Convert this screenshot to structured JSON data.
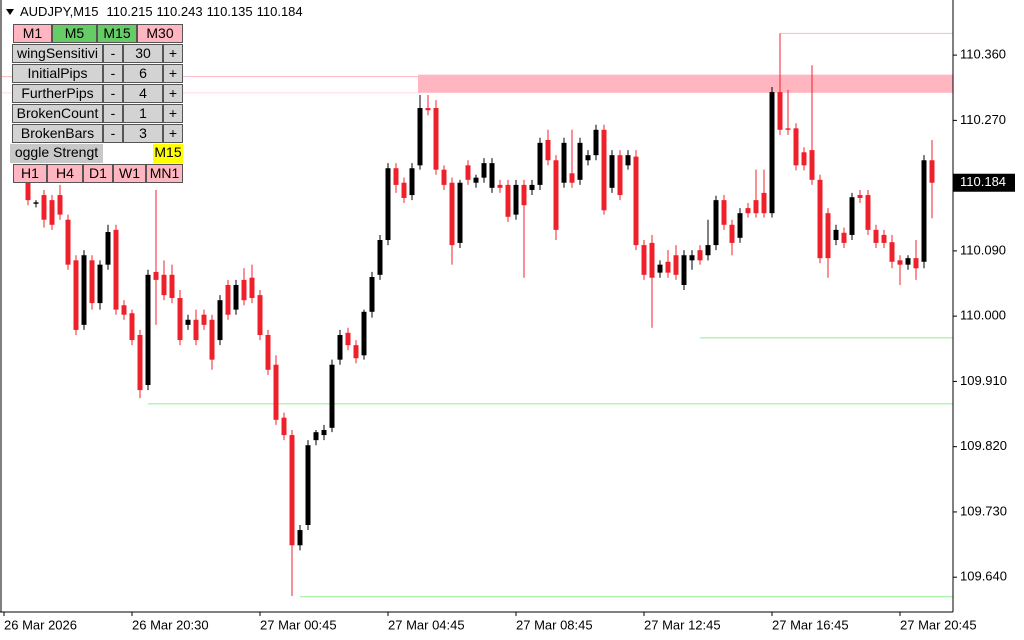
{
  "header": {
    "symbol": "AUDJPY,M15"
  },
  "panel": {
    "timeframes_top": [
      {
        "label": "M1",
        "color": "#ffb6c1"
      },
      {
        "label": "M5",
        "color": "#66cc66"
      },
      {
        "label": "M15",
        "color": "#66cc66"
      },
      {
        "label": "M30",
        "color": "#ffb6c1"
      }
    ],
    "params": [
      {
        "name": "wingSensitivi",
        "minus": "-",
        "value": 30,
        "plus": "+"
      },
      {
        "name": "InitialPips",
        "minus": "-",
        "value": 6,
        "plus": "+"
      },
      {
        "name": "FurtherPips",
        "minus": "-",
        "value": 4,
        "plus": "+"
      },
      {
        "name": "BrokenCount",
        "minus": "-",
        "value": 1,
        "plus": "+"
      },
      {
        "name": "BrokenBars",
        "minus": "-",
        "value": 3,
        "plus": "+"
      }
    ],
    "toggle": {
      "name": "oggle Strengt",
      "value": "M15",
      "color": "#ffff00"
    },
    "timeframes_bottom": [
      {
        "label": "H1",
        "color": "#ffb6c1"
      },
      {
        "label": "H4",
        "color": "#ffb6c1"
      },
      {
        "label": "D1",
        "color": "#ffb6c1"
      },
      {
        "label": "W1",
        "color": "#ffb6c1"
      },
      {
        "label": "MN1",
        "color": "#ffb6c1"
      }
    ]
  },
  "chart_data": {
    "type": "candlestick",
    "up_color": "#000000",
    "down_color": "#f0202b",
    "ylim": [
      109.592,
      110.436
    ],
    "yticks": [
      {
        "value": 110.36,
        "label": "110.360"
      },
      {
        "value": 110.27,
        "label": "110.270"
      },
      {
        "value": 110.09,
        "label": "110.090"
      },
      {
        "value": 110.0,
        "label": "110.000"
      },
      {
        "value": 109.91,
        "label": "109.910"
      },
      {
        "value": 109.82,
        "label": "109.820"
      },
      {
        "value": 109.73,
        "label": "109.730"
      },
      {
        "value": 109.64,
        "label": "109.640"
      }
    ],
    "time_labels": [
      "26 Mar 2026",
      "26 Mar 20:30",
      "27 Mar 00:45",
      "27 Mar 04:45",
      "27 Mar 08:45",
      "27 Mar 12:45",
      "27 Mar 16:45",
      "27 Mar 20:45"
    ],
    "price_label": {
      "value": 110.184,
      "label": "110.184"
    },
    "zone": {
      "low": 110.308,
      "high": 110.333,
      "start": 49,
      "color": "#ffb6c1"
    },
    "levels": [
      {
        "price": 110.39,
        "start": 94,
        "color": "#ffb6c1"
      },
      {
        "price": 109.97,
        "start": 84,
        "color": "#90ee90"
      },
      {
        "price": 109.879,
        "start": 15,
        "color": "#90ee90"
      },
      {
        "price": 109.613,
        "start": 34,
        "color": "#90ee90"
      }
    ],
    "open": [
      110.188,
      110.155,
      110.167,
      110.16,
      110.167,
      110.133,
      110.077,
      109.988,
      110.077,
      110.018,
      110.071,
      110.119,
      110.015,
      110.004,
      109.974,
      109.905,
      110.061,
      110.057,
      110.057,
      110.025,
      109.988,
      109.995,
      110.002,
      109.995,
      109.967,
      110.043,
      110.009,
      110.05,
      110.053,
      110.029,
      109.974,
      109.933,
      109.86,
      109.836,
      109.684,
      109.712,
      109.829,
      109.836,
      109.846,
      109.94,
      109.977,
      109.96,
      109.946,
      110.006,
      110.057,
      110.105,
      110.204,
      110.184,
      110.167,
      110.208,
      110.287,
      110.287,
      110.202,
      110.184,
      110.101,
      110.208,
      110.184,
      110.191,
      110.177,
      110.181,
      110.181,
      110.14,
      110.181,
      110.174,
      110.181,
      110.243,
      110.215,
      110.184,
      110.197,
      110.188,
      110.215,
      110.222,
      110.257,
      110.177,
      110.222,
      110.208,
      110.22,
      110.098,
      110.101,
      110.06,
      110.075,
      110.084,
      110.043,
      110.077,
      110.091,
      110.084,
      110.098,
      110.16,
      110.126,
      110.108,
      110.149,
      110.16,
      110.17,
      110.142,
      110.309,
      110.259,
      110.259,
      110.226,
      110.229,
      110.188,
      110.142,
      110.105,
      110.115,
      110.112,
      110.167,
      110.167,
      110.119,
      110.112,
      110.102,
      110.077,
      110.071,
      110.08,
      110.075,
      110.215
    ],
    "high": [
      110.202,
      110.16,
      110.174,
      110.167,
      110.181,
      110.14,
      110.084,
      110.091,
      110.084,
      110.077,
      110.126,
      110.126,
      110.022,
      110.009,
      109.981,
      110.064,
      110.174,
      110.077,
      110.071,
      110.036,
      110.002,
      110.009,
      110.009,
      110.002,
      110.029,
      110.05,
      110.05,
      110.066,
      110.071,
      110.036,
      109.981,
      109.946,
      109.867,
      109.843,
      109.712,
      109.829,
      109.843,
      109.85,
      109.94,
      109.981,
      109.984,
      109.967,
      110.009,
      110.061,
      110.112,
      110.211,
      110.211,
      110.191,
      110.211,
      110.305,
      110.305,
      110.298,
      110.208,
      110.191,
      110.188,
      110.215,
      110.195,
      110.218,
      110.218,
      110.188,
      110.188,
      110.188,
      110.188,
      110.188,
      110.246,
      110.257,
      110.222,
      110.246,
      110.257,
      110.246,
      110.229,
      110.264,
      110.264,
      110.229,
      110.229,
      110.229,
      110.229,
      110.105,
      110.112,
      110.077,
      110.091,
      110.098,
      110.091,
      110.091,
      110.098,
      110.133,
      110.166,
      110.167,
      110.133,
      110.149,
      110.156,
      110.202,
      110.202,
      110.316,
      110.39,
      110.312,
      110.266,
      110.233,
      110.346,
      110.195,
      110.149,
      110.126,
      110.122,
      110.17,
      110.174,
      110.174,
      110.126,
      110.119,
      110.112,
      110.084,
      110.084,
      110.105,
      110.222,
      110.243
    ],
    "low": [
      110.153,
      110.15,
      110.122,
      110.119,
      110.133,
      110.064,
      109.974,
      109.981,
      110.009,
      110.009,
      110.064,
      110.002,
      109.995,
      109.96,
      109.887,
      109.898,
      109.988,
      110.022,
      110.018,
      109.96,
      109.981,
      109.96,
      109.981,
      109.926,
      109.96,
      109.995,
      110.002,
      110.015,
      110.018,
      109.967,
      109.919,
      109.85,
      109.829,
      109.614,
      109.677,
      109.705,
      109.822,
      109.829,
      109.84,
      109.933,
      109.953,
      109.935,
      109.94,
      109.998,
      110.05,
      110.098,
      110.17,
      110.156,
      110.16,
      110.202,
      110.277,
      110.195,
      110.174,
      110.071,
      110.094,
      110.181,
      110.177,
      110.184,
      110.17,
      110.17,
      110.13,
      110.133,
      110.053,
      110.167,
      110.174,
      110.208,
      110.105,
      110.177,
      110.177,
      110.181,
      110.208,
      110.215,
      110.14,
      110.17,
      110.16,
      110.202,
      110.091,
      110.05,
      109.984,
      110.053,
      110.053,
      110.05,
      110.036,
      110.064,
      110.071,
      110.077,
      110.091,
      110.119,
      110.084,
      110.101,
      110.136,
      110.136,
      110.136,
      110.136,
      110.25,
      110.25,
      110.201,
      110.201,
      110.181,
      110.073,
      110.053,
      110.098,
      110.094,
      110.105,
      110.156,
      110.112,
      110.094,
      110.094,
      110.066,
      110.043,
      110.064,
      110.05,
      110.066,
      110.135
    ],
    "close": [
      110.16,
      110.157,
      110.133,
      110.126,
      110.14,
      110.071,
      109.981,
      110.084,
      110.018,
      110.071,
      110.116,
      110.009,
      110.002,
      109.967,
      109.898,
      110.057,
      110.05,
      110.029,
      110.025,
      109.967,
      109.995,
      109.967,
      109.988,
      109.94,
      110.022,
      110.002,
      110.043,
      110.022,
      110.025,
      109.974,
      109.926,
      109.857,
      109.836,
      109.684,
      109.705,
      109.822,
      109.84,
      109.843,
      109.933,
      109.974,
      109.96,
      109.942,
      110.006,
      110.054,
      110.105,
      110.204,
      110.181,
      110.163,
      110.204,
      110.287,
      110.284,
      110.202,
      110.181,
      110.098,
      110.184,
      110.188,
      110.191,
      110.211,
      110.211,
      110.177,
      110.137,
      110.181,
      110.153,
      110.181,
      110.239,
      110.215,
      110.119,
      110.239,
      110.184,
      110.239,
      110.222,
      110.257,
      110.146,
      110.222,
      110.167,
      110.222,
      110.098,
      110.057,
      110.053,
      110.071,
      110.06,
      110.057,
      110.084,
      110.084,
      110.077,
      110.098,
      110.16,
      110.126,
      110.101,
      110.142,
      110.142,
      110.142,
      110.142,
      110.309,
      110.257,
      110.257,
      110.208,
      110.208,
      110.188,
      110.08,
      110.08,
      110.119,
      110.101,
      110.164,
      110.163,
      110.119,
      110.101,
      110.101,
      110.075,
      110.071,
      110.08,
      110.066,
      110.215,
      110.184
    ]
  }
}
